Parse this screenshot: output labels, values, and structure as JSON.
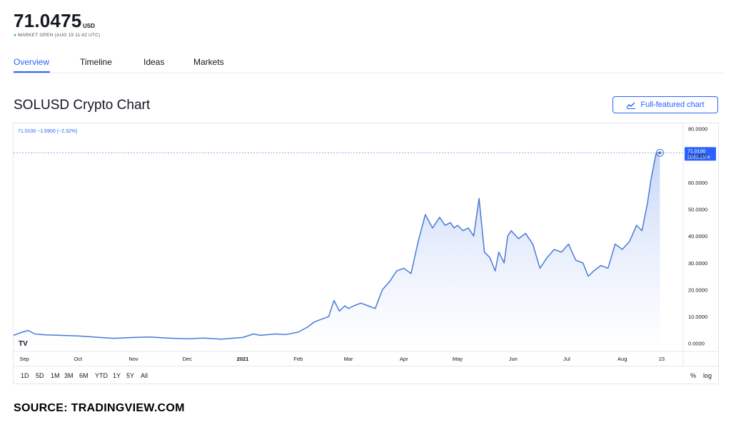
{
  "header": {
    "price": "71.0475",
    "currency": "USD",
    "market_status": "MARKET OPEN (AUG 19 11:42 UTC)"
  },
  "tabs": [
    {
      "label": "Overview",
      "active": true
    },
    {
      "label": "Timeline",
      "active": false
    },
    {
      "label": "Ideas",
      "active": false
    },
    {
      "label": "Markets",
      "active": false
    }
  ],
  "chart_header": {
    "title": "SOLUSD Crypto Chart",
    "full_chart_button": "Full-featured chart"
  },
  "chart_widget": {
    "legend": "71.0100  −1.6900 (−2.32%)",
    "last_price_label": "71.0100",
    "last_change_label": "2063.29%",
    "logo": "TV",
    "time_ranges": [
      "1D",
      "5D",
      "1M",
      "3M",
      "6M",
      "YTD",
      "1Y",
      "5Y",
      "All"
    ],
    "scale_options": [
      "%",
      "log"
    ]
  },
  "colors": {
    "accent": "#2962ff",
    "line": "#4a7ad8",
    "fill_top": "#c7d6f7",
    "fill_bottom": "#ffffff"
  },
  "chart_data": {
    "type": "area",
    "title": "SOLUSD Crypto Chart",
    "y_ticks": [
      "80.0000",
      "70.0000",
      "60.0000",
      "50.0000",
      "40.0000",
      "30.0000",
      "20.0000",
      "10.0000",
      "0.0000"
    ],
    "ylim": [
      -3,
      82
    ],
    "x_ticks": [
      "Sep",
      "Oct",
      "Nov",
      "Dec",
      "2021",
      "Feb",
      "Mar",
      "Apr",
      "May",
      "Jun",
      "Jul",
      "Aug",
      "23"
    ],
    "x_tick_days": [
      0,
      30,
      61,
      91,
      122,
      153,
      181,
      212,
      242,
      273,
      303,
      334,
      356
    ],
    "xlim": [
      -6,
      368
    ],
    "series": [
      {
        "x": [
          -6,
          -2,
          2,
          6,
          12,
          20,
          30,
          40,
          50,
          61,
          70,
          80,
          91,
          100,
          110,
          122,
          128,
          132,
          140,
          146,
          153,
          158,
          162,
          166,
          170,
          173,
          176,
          179,
          181,
          184,
          188,
          192,
          196,
          200,
          204,
          208,
          212,
          216,
          220,
          224,
          228,
          232,
          235,
          238,
          240,
          242,
          245,
          248,
          251,
          254,
          257,
          260,
          263,
          265,
          268,
          270,
          272,
          276,
          280,
          284,
          288,
          292,
          296,
          300,
          304,
          308,
          312,
          315,
          318,
          322,
          326,
          330,
          334,
          338,
          342,
          345,
          348,
          350,
          352,
          353,
          355
        ],
        "y": [
          3,
          4,
          4.8,
          3.5,
          3.2,
          3.0,
          2.8,
          2.3,
          1.9,
          2.2,
          2.4,
          2.0,
          1.7,
          2.0,
          1.6,
          2.2,
          3.5,
          3.0,
          3.5,
          3.3,
          4.2,
          6,
          8,
          9,
          10,
          16,
          12,
          14,
          13,
          14,
          15,
          14,
          13,
          20,
          23,
          27,
          28,
          26,
          38,
          48,
          43,
          47,
          44,
          45,
          43,
          44,
          42,
          43,
          40,
          54,
          34,
          32,
          27,
          34,
          30,
          40,
          42,
          39,
          41,
          37,
          28,
          32,
          35,
          34,
          37,
          31,
          30,
          25,
          27,
          29,
          28,
          37,
          35,
          38,
          44,
          42,
          52,
          61,
          68,
          71,
          71.01
        ]
      }
    ],
    "last_value": 71.01,
    "last_change_percent": "2063.29%",
    "grid": false,
    "legend": "top-left"
  },
  "source_caption": "SOURCE: TRADINGVIEW.COM"
}
